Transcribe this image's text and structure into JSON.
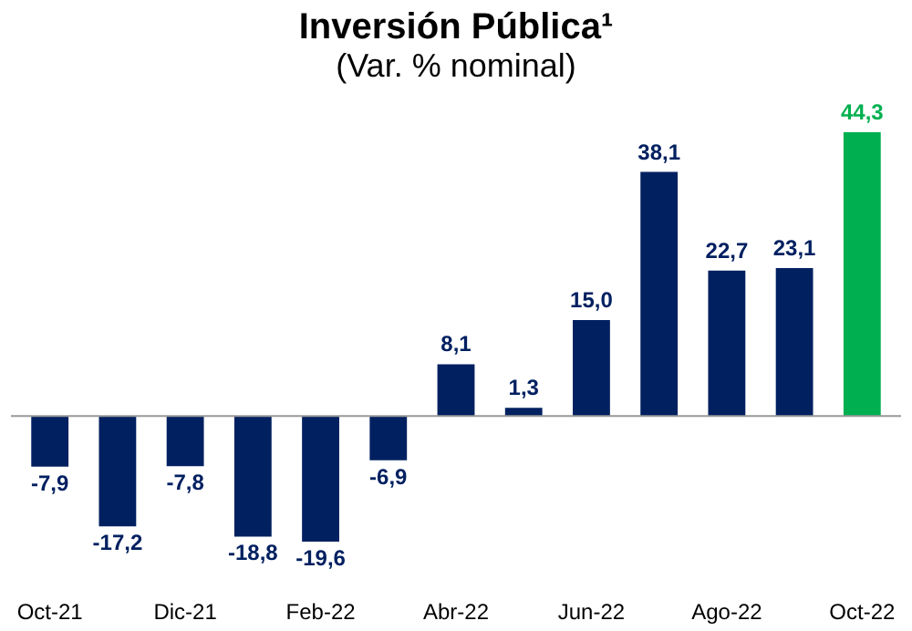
{
  "chart_data": {
    "type": "bar",
    "title": "Inversión Pública¹",
    "subtitle": "(Var. % nominal)",
    "categories": [
      "Oct-21",
      null,
      "Dic-21",
      null,
      "Feb-22",
      null,
      "Abr-22",
      null,
      "Jun-22",
      null,
      "Ago-22",
      null,
      "Oct-22"
    ],
    "values": [
      -7.9,
      -17.2,
      -7.8,
      -18.8,
      -19.6,
      -6.9,
      8.1,
      1.3,
      15.0,
      38.1,
      22.7,
      23.1,
      44.3
    ],
    "colors": [
      "#002060",
      "#002060",
      "#002060",
      "#002060",
      "#002060",
      "#002060",
      "#002060",
      "#002060",
      "#002060",
      "#002060",
      "#002060",
      "#002060",
      "#00b050"
    ],
    "value_labels": [
      "-7,9",
      "-17,2",
      "-7,8",
      "-18,8",
      "-19,6",
      "-6,9",
      "8,1",
      "1,3",
      "15,0",
      "38,1",
      "22,7",
      "23,1",
      "44,3"
    ]
  }
}
